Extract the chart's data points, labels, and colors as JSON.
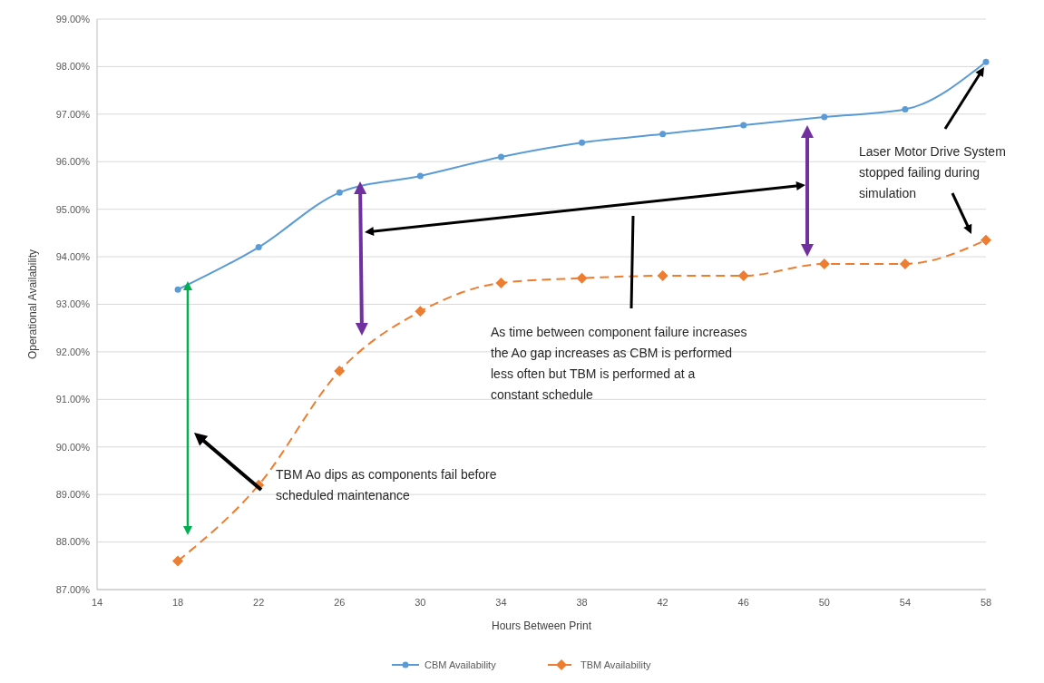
{
  "chart_data": {
    "type": "line",
    "xlabel": "Hours Between  Print",
    "ylabel": "Operational Availability",
    "x": [
      18,
      22,
      26,
      30,
      34,
      38,
      42,
      46,
      50,
      54,
      58
    ],
    "series": [
      {
        "name": "CBM Availability",
        "color": "#5b9bd5",
        "marker": "circle",
        "line_style": "solid",
        "values": [
          93.31,
          94.2,
          95.35,
          95.7,
          96.1,
          96.4,
          96.58,
          96.77,
          96.94,
          97.1,
          98.1
        ]
      },
      {
        "name": "TBM Availability",
        "color": "#ed7d31",
        "marker": "diamond",
        "line_style": "dashed",
        "values": [
          87.6,
          89.2,
          91.6,
          92.85,
          93.45,
          93.55,
          93.6,
          93.6,
          93.85,
          93.85,
          94.35
        ]
      }
    ],
    "xlim": [
      14,
      58
    ],
    "xticks": [
      14,
      18,
      22,
      26,
      30,
      34,
      38,
      42,
      46,
      50,
      54,
      58
    ],
    "ylim": [
      87,
      99
    ],
    "yticks": [
      {
        "value": 87,
        "label": "87.00%"
      },
      {
        "value": 88,
        "label": "88.00%"
      },
      {
        "value": 89,
        "label": "89.00%"
      },
      {
        "value": 90,
        "label": "90.00%"
      },
      {
        "value": 91,
        "label": "91.00%"
      },
      {
        "value": 92,
        "label": "92.00%"
      },
      {
        "value": 93,
        "label": "93.00%"
      },
      {
        "value": 94,
        "label": "94.00%"
      },
      {
        "value": 95,
        "label": "95.00%"
      },
      {
        "value": 96,
        "label": "96.00%"
      },
      {
        "value": 97,
        "label": "97.00%"
      },
      {
        "value": 98,
        "label": "98.00%"
      },
      {
        "value": 99,
        "label": "99.00%"
      }
    ],
    "grid": "y",
    "legend": "bottom",
    "annotations": [
      "Laser Motor Drive System stopped failing during simulation",
      "As time between component failure increases the Ao gap increases as CBM is performed less often but TBM is performed at a constant schedule",
      "TBM Ao dips as components fail before scheduled maintenance"
    ]
  }
}
